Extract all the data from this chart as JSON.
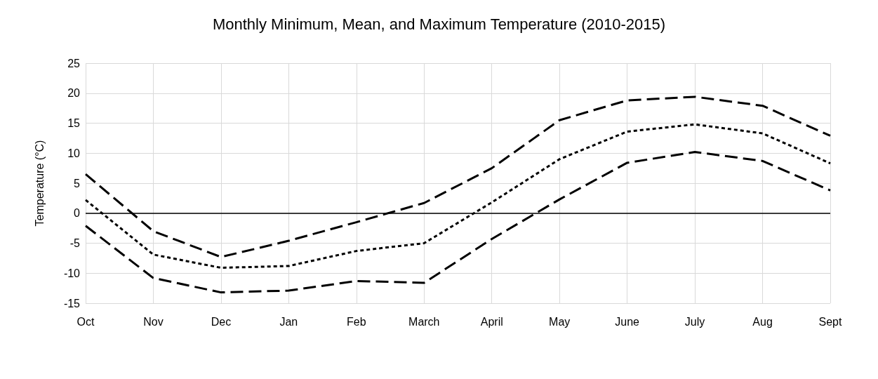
{
  "chart_data": {
    "type": "line",
    "title": "Monthly Minimum, Mean, and Maximum Temperature (2010-2015)",
    "ylabel": "Temperature (°C)",
    "categories": [
      "Oct",
      "Nov",
      "Dec",
      "Jan",
      "Feb",
      "March",
      "April",
      "May",
      "June",
      "July",
      "Aug",
      "Sept"
    ],
    "series": [
      {
        "color": "#000000",
        "line_style": "dashed",
        "values": [
          6.5,
          -3,
          -7.3,
          -4.6,
          -1.5,
          1.7,
          7.5,
          15.5,
          18.8,
          19.4,
          17.9,
          12.9
        ]
      },
      {
        "color": "#000000",
        "line_style": "dotted",
        "values": [
          2.2,
          -6.9,
          -9.1,
          -8.8,
          -6.3,
          -5,
          1.8,
          9,
          13.6,
          14.8,
          13.3,
          8.3
        ]
      },
      {
        "color": "#000000",
        "line_style": "dashed",
        "values": [
          -2.1,
          -10.8,
          -13.2,
          -12.9,
          -11.3,
          -11.6,
          -4.3,
          2.3,
          8.4,
          10.2,
          8.7,
          3.8
        ]
      }
    ],
    "ylim": [
      -15,
      25
    ],
    "yticks": [
      -15,
      -10,
      -5,
      0,
      5,
      10,
      15,
      20,
      25
    ],
    "grid": true,
    "marker": "none",
    "ref_lines": [
      {
        "axis": "y",
        "value": 0,
        "color": "#000000"
      }
    ]
  }
}
